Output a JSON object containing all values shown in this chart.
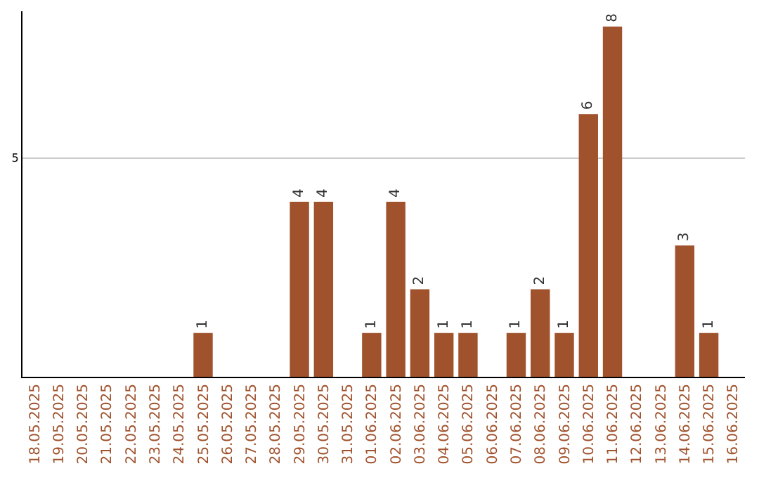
{
  "chart_data": {
    "type": "bar",
    "categories": [
      "18.05.2025",
      "19.05.2025",
      "20.05.2025",
      "21.05.2025",
      "22.05.2025",
      "23.05.2025",
      "24.05.2025",
      "25.05.2025",
      "26.05.2025",
      "27.05.2025",
      "28.05.2025",
      "29.05.2025",
      "30.05.2025",
      "31.05.2025",
      "01.06.2025",
      "02.06.2025",
      "03.06.2025",
      "04.06.2025",
      "05.06.2025",
      "06.06.2025",
      "07.06.2025",
      "08.06.2025",
      "09.06.2025",
      "10.06.2025",
      "11.06.2025",
      "12.06.2025",
      "13.06.2025",
      "14.06.2025",
      "15.06.2025",
      "16.06.2025"
    ],
    "values": [
      0,
      0,
      0,
      0,
      0,
      0,
      0,
      1,
      0,
      0,
      0,
      4,
      4,
      0,
      1,
      4,
      2,
      1,
      1,
      0,
      1,
      2,
      1,
      6,
      8,
      0,
      0,
      3,
      1,
      0
    ],
    "value_labels": [
      null,
      null,
      null,
      null,
      null,
      null,
      null,
      "1",
      null,
      null,
      null,
      "4",
      "4",
      null,
      "1",
      "4",
      "2",
      "1",
      "1",
      null,
      "1",
      "2",
      "1",
      "6",
      "8",
      null,
      null,
      "3",
      "1",
      null
    ],
    "color": "#a0522d",
    "ylim": [
      0,
      8.35
    ],
    "yticks": [
      5
    ],
    "grid": "y"
  }
}
